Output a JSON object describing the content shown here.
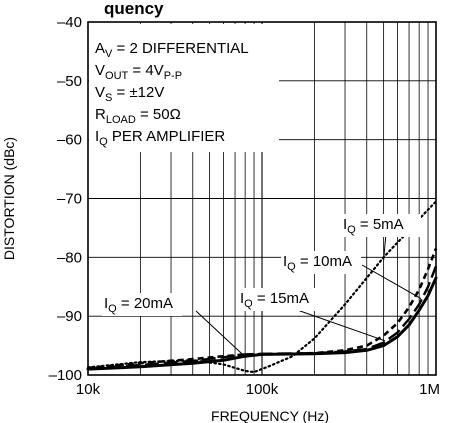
{
  "chart_data": {
    "type": "line",
    "title": "",
    "title_fragment": "quency",
    "xlabel": "FREQUENCY (Hz)",
    "ylabel": "DISTORTION (dBc)",
    "x_scale": "log",
    "xlim": [
      10000,
      1000000
    ],
    "ylim": [
      -100,
      -40
    ],
    "x_ticks": [
      {
        "value": 10000,
        "label": "10k"
      },
      {
        "value": 100000,
        "label": "100k"
      },
      {
        "value": 1000000,
        "label": "1M"
      }
    ],
    "y_ticks": [
      {
        "value": -40,
        "label": "–40"
      },
      {
        "value": -50,
        "label": "–50"
      },
      {
        "value": -60,
        "label": "–60"
      },
      {
        "value": -70,
        "label": "–70"
      },
      {
        "value": -80,
        "label": "–80"
      },
      {
        "value": -90,
        "label": "–90"
      },
      {
        "value": -100,
        "label": "–100"
      }
    ],
    "grid": true,
    "conditions": [
      {
        "main": "A",
        "sub": "V",
        "rest": " = 2 DIFFERENTIAL"
      },
      {
        "main": "V",
        "sub": "OUT",
        "rest": " = 4V",
        "sub2": "P-P"
      },
      {
        "main": "V",
        "sub": "S",
        "rest": " = ±12V"
      },
      {
        "main": "R",
        "sub": "LOAD",
        "rest": " = 50Ω"
      },
      {
        "main": "I",
        "sub": "Q",
        "rest": " PER AMPLIFIER"
      }
    ],
    "series": [
      {
        "name_main": "I",
        "name_sub": "Q",
        "name_rest": " = 5mA",
        "style": "dotted",
        "points": [
          [
            10000,
            -98.7
          ],
          [
            20000,
            -97.8
          ],
          [
            40000,
            -97.5
          ],
          [
            60000,
            -98.2
          ],
          [
            80000,
            -99.3
          ],
          [
            90000,
            -99.5
          ],
          [
            110000,
            -98.5
          ],
          [
            150000,
            -96.8
          ],
          [
            200000,
            -93.8
          ],
          [
            300000,
            -88.0
          ],
          [
            400000,
            -83.5
          ],
          [
            500000,
            -80.0
          ],
          [
            600000,
            -77.5
          ],
          [
            700000,
            -75.5
          ],
          [
            800000,
            -73.5
          ],
          [
            1000000,
            -70.5
          ]
        ]
      },
      {
        "name_main": "I",
        "name_sub": "Q",
        "name_rest": " = 10mA",
        "style": "short-dash",
        "points": [
          [
            10000,
            -98.8
          ],
          [
            20000,
            -98.0
          ],
          [
            40000,
            -97.3
          ],
          [
            60000,
            -96.8
          ],
          [
            80000,
            -96.5
          ],
          [
            100000,
            -96.5
          ],
          [
            200000,
            -96.3
          ],
          [
            300000,
            -95.8
          ],
          [
            400000,
            -95.0
          ],
          [
            500000,
            -93.3
          ],
          [
            600000,
            -91.2
          ],
          [
            700000,
            -88.5
          ],
          [
            800000,
            -85.5
          ],
          [
            900000,
            -82.0
          ],
          [
            1000000,
            -78.5
          ]
        ]
      },
      {
        "name_main": "I",
        "name_sub": "Q",
        "name_rest": " = 15mA",
        "style": "long-dash",
        "points": [
          [
            10000,
            -98.9
          ],
          [
            20000,
            -98.3
          ],
          [
            40000,
            -97.6
          ],
          [
            60000,
            -97.0
          ],
          [
            80000,
            -96.5
          ],
          [
            100000,
            -96.4
          ],
          [
            200000,
            -96.3
          ],
          [
            300000,
            -96.0
          ],
          [
            400000,
            -95.6
          ],
          [
            500000,
            -94.5
          ],
          [
            600000,
            -92.8
          ],
          [
            700000,
            -90.5
          ],
          [
            800000,
            -88.0
          ],
          [
            900000,
            -85.0
          ],
          [
            1000000,
            -81.5
          ]
        ]
      },
      {
        "name_main": "I",
        "name_sub": "Q",
        "name_rest": " = 20mA",
        "style": "solid-thick",
        "points": [
          [
            10000,
            -99.0
          ],
          [
            20000,
            -98.6
          ],
          [
            40000,
            -98.0
          ],
          [
            60000,
            -97.5
          ],
          [
            80000,
            -96.8
          ],
          [
            100000,
            -96.5
          ],
          [
            200000,
            -96.4
          ],
          [
            300000,
            -96.2
          ],
          [
            400000,
            -95.8
          ],
          [
            500000,
            -95.0
          ],
          [
            600000,
            -93.5
          ],
          [
            700000,
            -91.5
          ],
          [
            800000,
            -89.0
          ],
          [
            900000,
            -86.5
          ],
          [
            1000000,
            -83.5
          ]
        ]
      }
    ],
    "callouts": [
      {
        "series": 0,
        "anchor": [
          500000,
          -80.5
        ]
      },
      {
        "series": 1,
        "anchor": [
          820000,
          -87.0
        ]
      },
      {
        "series": 2,
        "anchor": [
          510000,
          -94.2
        ]
      },
      {
        "series": 3,
        "anchor": [
          78000,
          -96.6
        ]
      }
    ]
  }
}
